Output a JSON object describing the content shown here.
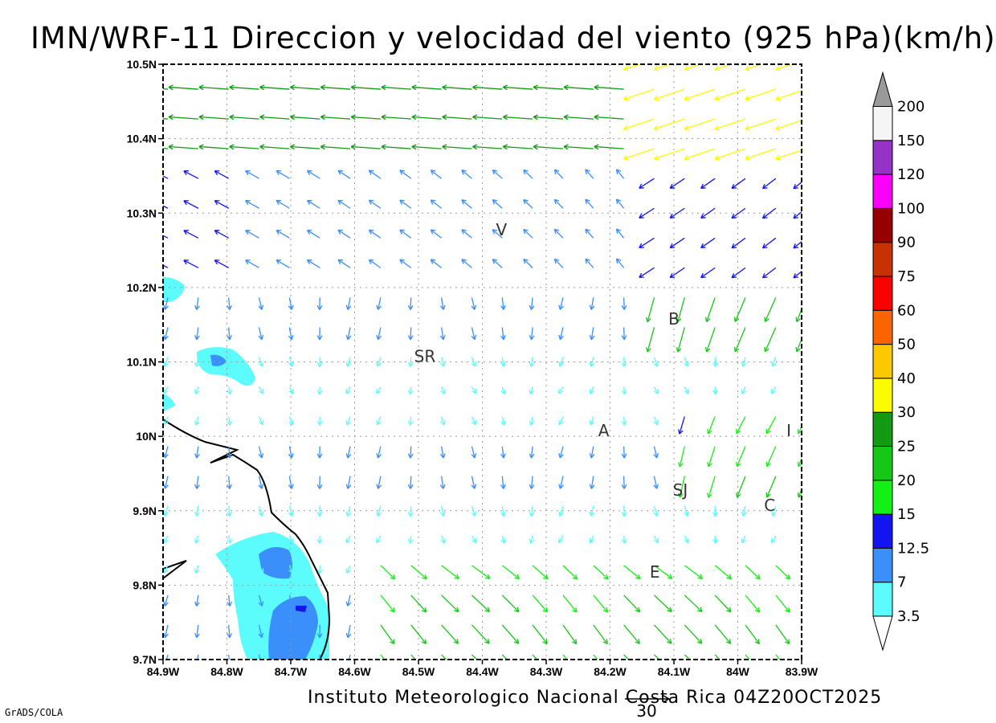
{
  "title": "IMN/WRF-11 Direccion y velocidad del viento (925 hPa)(km/h)",
  "footer": "Instituto Meteorologico Nacional Costa Rica 04Z20OCT2025",
  "software": "GrADS/COLA",
  "reference_vector_label": "30",
  "lon_ticks": [
    "84.9W",
    "84.8W",
    "84.7W",
    "84.6W",
    "84.5W",
    "84.4W",
    "84.3W",
    "84.2W",
    "84.1W",
    "84W",
    "83.9W"
  ],
  "lat_ticks": [
    "10.5N",
    "10.4N",
    "10.3N",
    "10.2N",
    "10.1N",
    "10N",
    "9.9N",
    "9.8N",
    "9.7N"
  ],
  "colorbar": {
    "labels": [
      "3.5",
      "7",
      "12.5",
      "15",
      "20",
      "25",
      "30",
      "40",
      "50",
      "60",
      "75",
      "90",
      "100",
      "120",
      "150",
      "200"
    ],
    "colors": [
      "#5cfcfc",
      "#3a8ffa",
      "#1414f0",
      "#13f013",
      "#16c816",
      "#129a12",
      "#fcfc00",
      "#fcc800",
      "#fc6400",
      "#fc0000",
      "#c83200",
      "#960000",
      "#fc00fc",
      "#9632c8",
      "#f5f5f5",
      "#9a9a9a"
    ]
  },
  "cities": [
    {
      "label": "V",
      "lon": -84.37,
      "lat": 10.27
    },
    {
      "label": "B",
      "lon": -84.1,
      "lat": 10.15
    },
    {
      "label": "SR",
      "lon": -84.49,
      "lat": 10.1
    },
    {
      "label": "A",
      "lon": -84.21,
      "lat": 10.0
    },
    {
      "label": "I",
      "lon": -83.92,
      "lat": 10.0
    },
    {
      "label": "SJ",
      "lon": -84.09,
      "lat": 9.92
    },
    {
      "label": "C",
      "lon": -83.95,
      "lat": 9.9
    },
    {
      "label": "E",
      "lon": -84.13,
      "lat": 9.81
    }
  ],
  "chart_data": {
    "type": "map",
    "title": "IMN/WRF-11 Direccion y velocidad del viento (925 hPa)(km/h)",
    "variable": "wind direction and speed at 925 hPa",
    "units": "km/h",
    "lon_range": [
      -84.9,
      -83.9
    ],
    "lat_range": [
      9.7,
      10.5
    ],
    "grid": true,
    "shaded_field": "speed contours 3.5-12.5 km/h near west coast (around 84.8W 10.1N and 84.7W 9.75N)",
    "vector_colors_by_speed": true,
    "reference_vector": 30
  }
}
